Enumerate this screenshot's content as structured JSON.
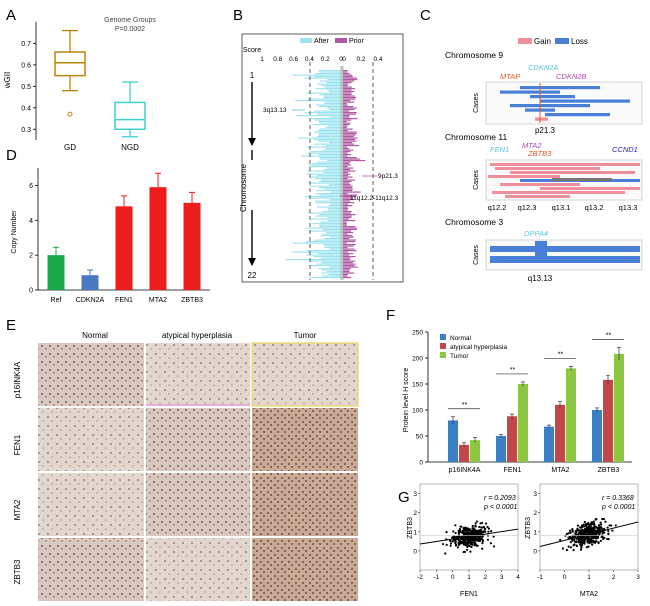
{
  "panel_labels": {
    "a": "A",
    "b": "B",
    "c": "C",
    "d": "D",
    "e": "E",
    "f": "F",
    "g": "G"
  },
  "colors": {
    "gd": "#b8860b",
    "ngd": "#3fd0d0",
    "after": "#9fe3ef",
    "prior": "#b05aa6",
    "gain": "#ef8f9a",
    "loss": "#4a7fd8",
    "ref": "#1aa84a",
    "cdkn2a": "#4a78c0",
    "red": "#ee1d1d",
    "normal": "#3b7fc4",
    "atypical": "#c2474b",
    "tumor": "#8dc63f"
  },
  "panelA": {
    "title": "Genome Groups",
    "pvalue": "P=0.0002",
    "ylabel": "wGII",
    "groups": [
      {
        "name": "GD",
        "q1": 0.55,
        "median": 0.61,
        "q3": 0.66,
        "min": 0.48,
        "max": 0.76,
        "outliers": [
          0.37
        ]
      },
      {
        "name": "NGD",
        "q1": 0.3,
        "median": 0.345,
        "q3": 0.425,
        "min": 0.265,
        "max": 0.52,
        "outliers": []
      }
    ],
    "yticks": [
      "0.3",
      "0.4",
      "0.5",
      "0.6",
      "0.7"
    ],
    "ylim": [
      0.25,
      0.8
    ]
  },
  "panelB": {
    "score_label": "Score",
    "legend": [
      "After",
      "Prior"
    ],
    "left_ticks": [
      "1",
      "0.8",
      "0.6",
      "0.4",
      "0.2",
      "0"
    ],
    "right_ticks": [
      "0",
      "0.2",
      "0.4"
    ],
    "ylabel": "Chromosome",
    "top": "1",
    "bottom": "22",
    "annotations": [
      "3q13.13",
      "9p21.3",
      "11q12.2-11q12.3"
    ]
  },
  "panelC": {
    "legend": [
      "Gain",
      "Loss"
    ],
    "cases_label": "Cases",
    "chr9": {
      "title": "Chromosome 9",
      "genes": [
        "CDKN2A",
        "MTAP",
        "CDKN2B"
      ],
      "band": "p21.3"
    },
    "chr11": {
      "title": "Chromosome 11",
      "genes": [
        "FEN1",
        "MTA2",
        "ZBTB3",
        "CCND1"
      ],
      "bands": [
        "q12.2",
        "q12.3",
        "q13.1",
        "q13.2",
        "q13.3"
      ]
    },
    "chr3": {
      "title": "Chromosome 3",
      "genes": [
        "DPPA4"
      ],
      "band": "q13.13"
    }
  },
  "panelD": {
    "chart_data": {
      "type": "bar",
      "categories": [
        "Ref",
        "CDKN2A",
        "FEN1",
        "MTA2",
        "ZBTB3"
      ],
      "values": [
        2.0,
        0.85,
        4.8,
        5.9,
        5.0
      ],
      "errors": [
        0.45,
        0.3,
        0.6,
        0.8,
        0.6
      ],
      "ylabel": "Copy Number",
      "ylim": [
        0,
        7
      ],
      "yticks": [
        "0",
        "2",
        "4",
        "6"
      ]
    }
  },
  "panelE": {
    "columns": [
      "Normal",
      "atypical hyperplasia",
      "Tumor"
    ],
    "rows": [
      "p16INK4A",
      "FEN1",
      "MTA2",
      "ZBTB3"
    ]
  },
  "panelF": {
    "chart_data": {
      "type": "bar",
      "categories": [
        "p16INK4A",
        "FEN1",
        "MTA2",
        "ZBTB3"
      ],
      "series": [
        {
          "name": "Normal",
          "values": [
            80,
            50,
            68,
            100
          ],
          "errors": [
            7,
            3,
            3,
            4
          ]
        },
        {
          "name": "atypical hyperplasia",
          "values": [
            33,
            88,
            110,
            158
          ],
          "errors": [
            4,
            4,
            6,
            8
          ]
        },
        {
          "name": "Tumor",
          "values": [
            42,
            150,
            180,
            208
          ],
          "errors": [
            5,
            4,
            4,
            12
          ]
        }
      ],
      "ylabel": "Protein level H score",
      "ylim": [
        0,
        250
      ],
      "yticks": [
        "0",
        "50",
        "100",
        "150",
        "200",
        "250"
      ],
      "significance": [
        "**",
        "**",
        "**",
        "**"
      ]
    }
  },
  "panelG": {
    "chart_data": [
      {
        "type": "scatter",
        "xlabel": "FEN1",
        "ylabel": "ZBTB3",
        "r": "r = 0.2093",
        "p": "p < 0.0001",
        "xticks": [
          "-2",
          "-1",
          "0",
          "1",
          "2",
          "3",
          "4"
        ],
        "yticks": [
          "0",
          "1",
          "2",
          "3"
        ],
        "xlim": [
          -2,
          4
        ],
        "ylim": [
          -1,
          3.5
        ],
        "cx": 1.0,
        "cy": 0.8,
        "sx": 0.8,
        "sy": 0.5,
        "slope": 0.13,
        "intercept": 0.62
      },
      {
        "type": "scatter",
        "xlabel": "MTA2",
        "ylabel": "ZBTB3",
        "r": "r = 0.3368",
        "p": "p < 0.0001",
        "xticks": [
          "-1",
          "0",
          "1",
          "2",
          "3"
        ],
        "yticks": [
          "0",
          "1",
          "2",
          "3"
        ],
        "xlim": [
          -1,
          3
        ],
        "ylim": [
          -1,
          3.5
        ],
        "cx": 0.9,
        "cy": 0.85,
        "sx": 0.55,
        "sy": 0.5,
        "slope": 0.32,
        "intercept": 0.55
      }
    ]
  }
}
